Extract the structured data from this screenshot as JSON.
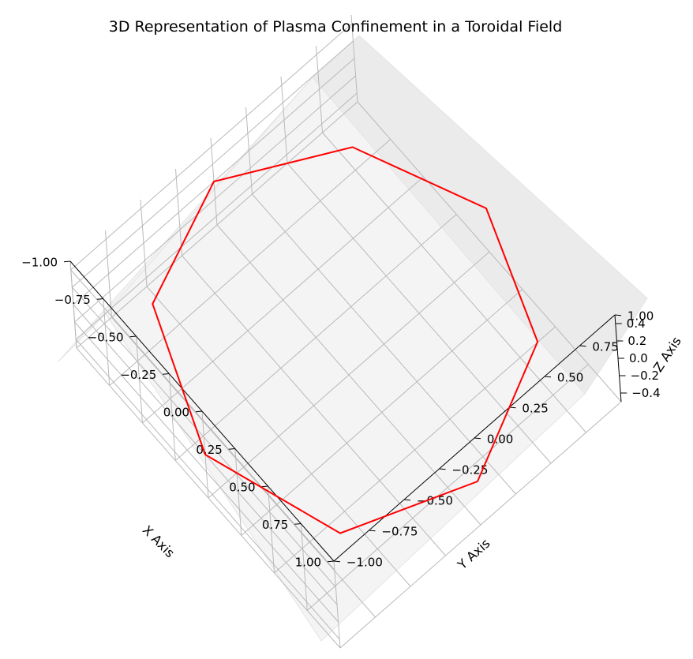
{
  "chart_data": {
    "type": "line",
    "projection": "3d",
    "title": "3D Representation of Plasma Confinement in a Toroidal Field",
    "xlabel": "X Axis",
    "ylabel": "Y Axis",
    "zlabel": "Z Axis",
    "xlim": [
      -1.0,
      1.0
    ],
    "ylim": [
      -1.0,
      1.0
    ],
    "zlim": [
      -0.5,
      0.5
    ],
    "x_ticks": [
      "−1.00",
      "−0.75",
      "−0.50",
      "−0.25",
      "0.00",
      "0.25",
      "0.50",
      "0.75",
      "1.00"
    ],
    "y_ticks": [
      "−1.00",
      "−0.75",
      "−0.50",
      "−0.25",
      "0.00",
      "0.25",
      "0.50",
      "0.75",
      "1.00"
    ],
    "z_ticks": [
      "−0.4",
      "−0.2",
      "0.0",
      "0.2",
      "0.4"
    ],
    "grid": true,
    "line_color": "#ff0000",
    "series": [
      {
        "x": [
          0.0,
          0.707,
          1.0,
          0.707,
          0.0,
          -0.707,
          -1.0,
          -0.707,
          0.0,
          0.707,
          1.0,
          0.707,
          0.0,
          -0.707,
          -1.0,
          -0.707,
          0.0
        ],
        "y": [
          1.0,
          0.707,
          0.0,
          -0.707,
          -1.0,
          -0.707,
          0.0,
          0.707,
          1.0,
          0.707,
          0.0,
          -0.707,
          -1.0,
          -0.707,
          0.0,
          0.707,
          1.0
        ],
        "z": [
          0.0,
          -0.1,
          0.0,
          0.1,
          0.0,
          -0.1,
          0.0,
          0.1,
          0.0,
          -0.1,
          0.0,
          0.1,
          0.0,
          -0.1,
          0.0,
          0.1,
          0.0
        ]
      }
    ]
  }
}
